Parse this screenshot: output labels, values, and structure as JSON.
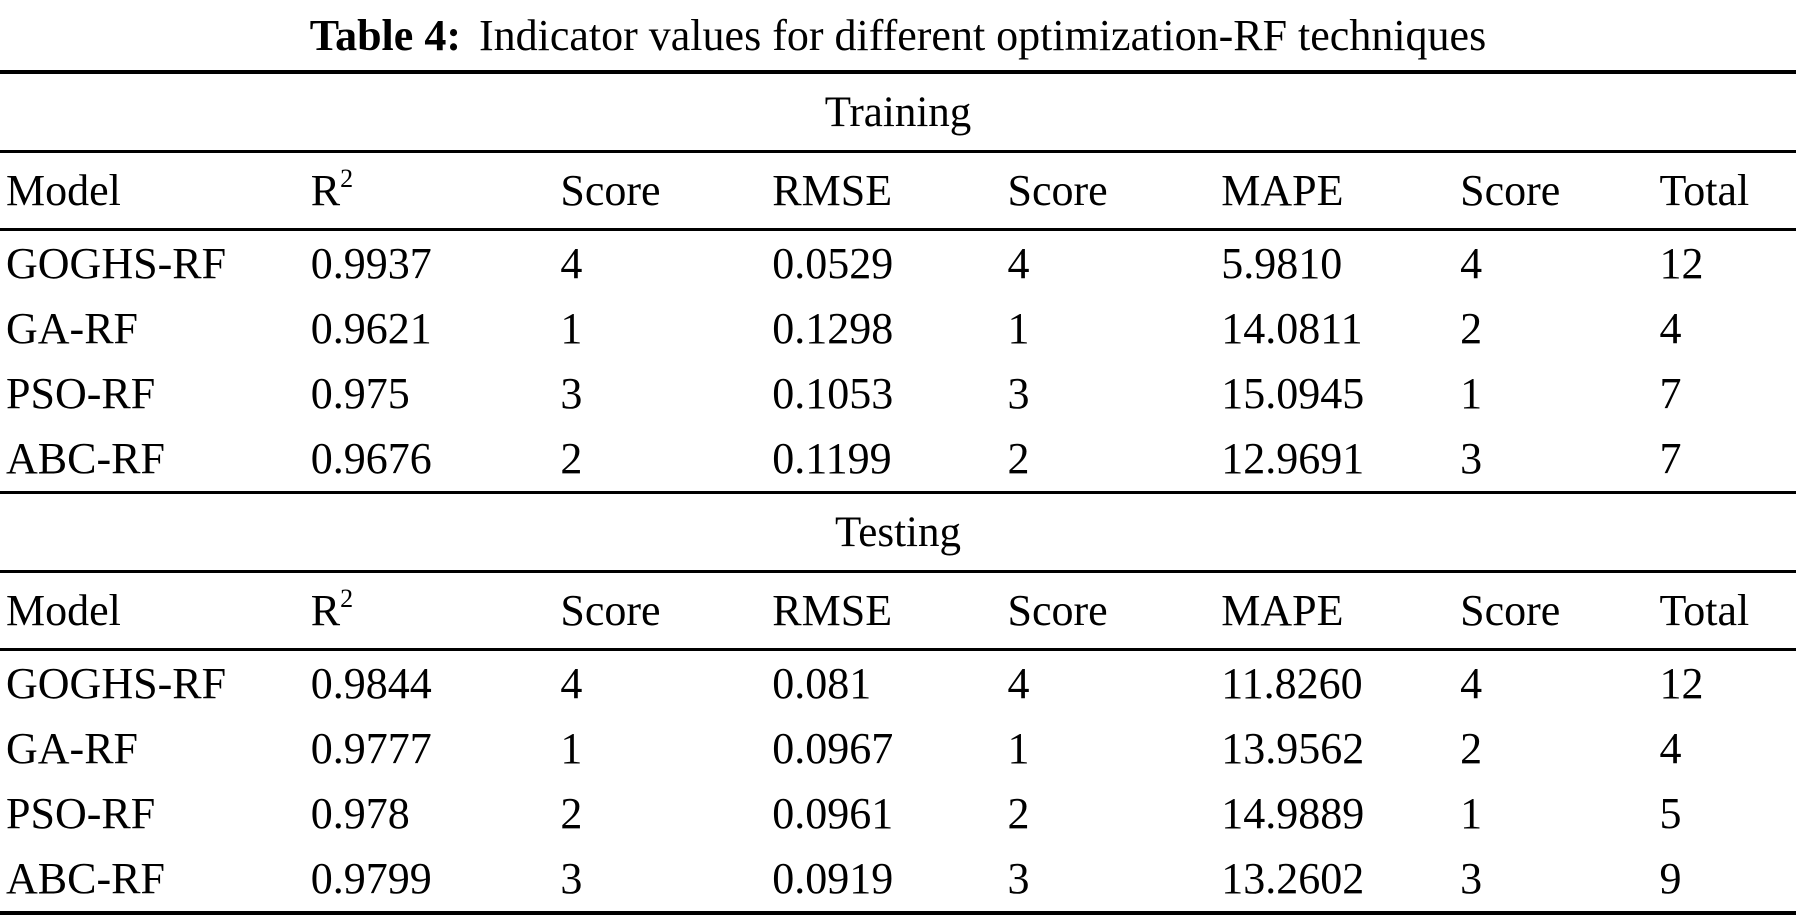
{
  "title": {
    "label": "Table 4:",
    "text": "Indicator values for different optimization-RF techniques"
  },
  "header": {
    "model": "Model",
    "r2_base": "R",
    "r2_sup": "2",
    "score1": "Score",
    "rmse": "RMSE",
    "score2": "Score",
    "mape": "MAPE",
    "score3": "Score",
    "total": "Total"
  },
  "sections": [
    {
      "label": "Training",
      "rows": [
        {
          "model": "GOGHS-RF",
          "r2": "0.9937",
          "r2_score": "4",
          "rmse": "0.0529",
          "rmse_score": "4",
          "mape": "5.9810",
          "mape_score": "4",
          "total": "12"
        },
        {
          "model": "GA-RF",
          "r2": "0.9621",
          "r2_score": "1",
          "rmse": "0.1298",
          "rmse_score": "1",
          "mape": "14.0811",
          "mape_score": "2",
          "total": "4"
        },
        {
          "model": "PSO-RF",
          "r2": "0.975",
          "r2_score": "3",
          "rmse": "0.1053",
          "rmse_score": "3",
          "mape": "15.0945",
          "mape_score": "1",
          "total": "7"
        },
        {
          "model": "ABC-RF",
          "r2": "0.9676",
          "r2_score": "2",
          "rmse": "0.1199",
          "rmse_score": "2",
          "mape": "12.9691",
          "mape_score": "3",
          "total": "7"
        }
      ]
    },
    {
      "label": "Testing",
      "rows": [
        {
          "model": "GOGHS-RF",
          "r2": "0.9844",
          "r2_score": "4",
          "rmse": "0.081",
          "rmse_score": "4",
          "mape": "11.8260",
          "mape_score": "4",
          "total": "12"
        },
        {
          "model": "GA-RF",
          "r2": "0.9777",
          "r2_score": "1",
          "rmse": "0.0967",
          "rmse_score": "1",
          "mape": "13.9562",
          "mape_score": "2",
          "total": "4"
        },
        {
          "model": "PSO-RF",
          "r2": "0.978",
          "r2_score": "2",
          "rmse": "0.0961",
          "rmse_score": "2",
          "mape": "14.9889",
          "mape_score": "1",
          "total": "5"
        },
        {
          "model": "ABC-RF",
          "r2": "0.9799",
          "r2_score": "3",
          "rmse": "0.0919",
          "rmse_score": "3",
          "mape": "13.2602",
          "mape_score": "3",
          "total": "9"
        }
      ]
    }
  ],
  "colors": {
    "text": "#000000",
    "background": "#ffffff",
    "rule": "#000000"
  }
}
